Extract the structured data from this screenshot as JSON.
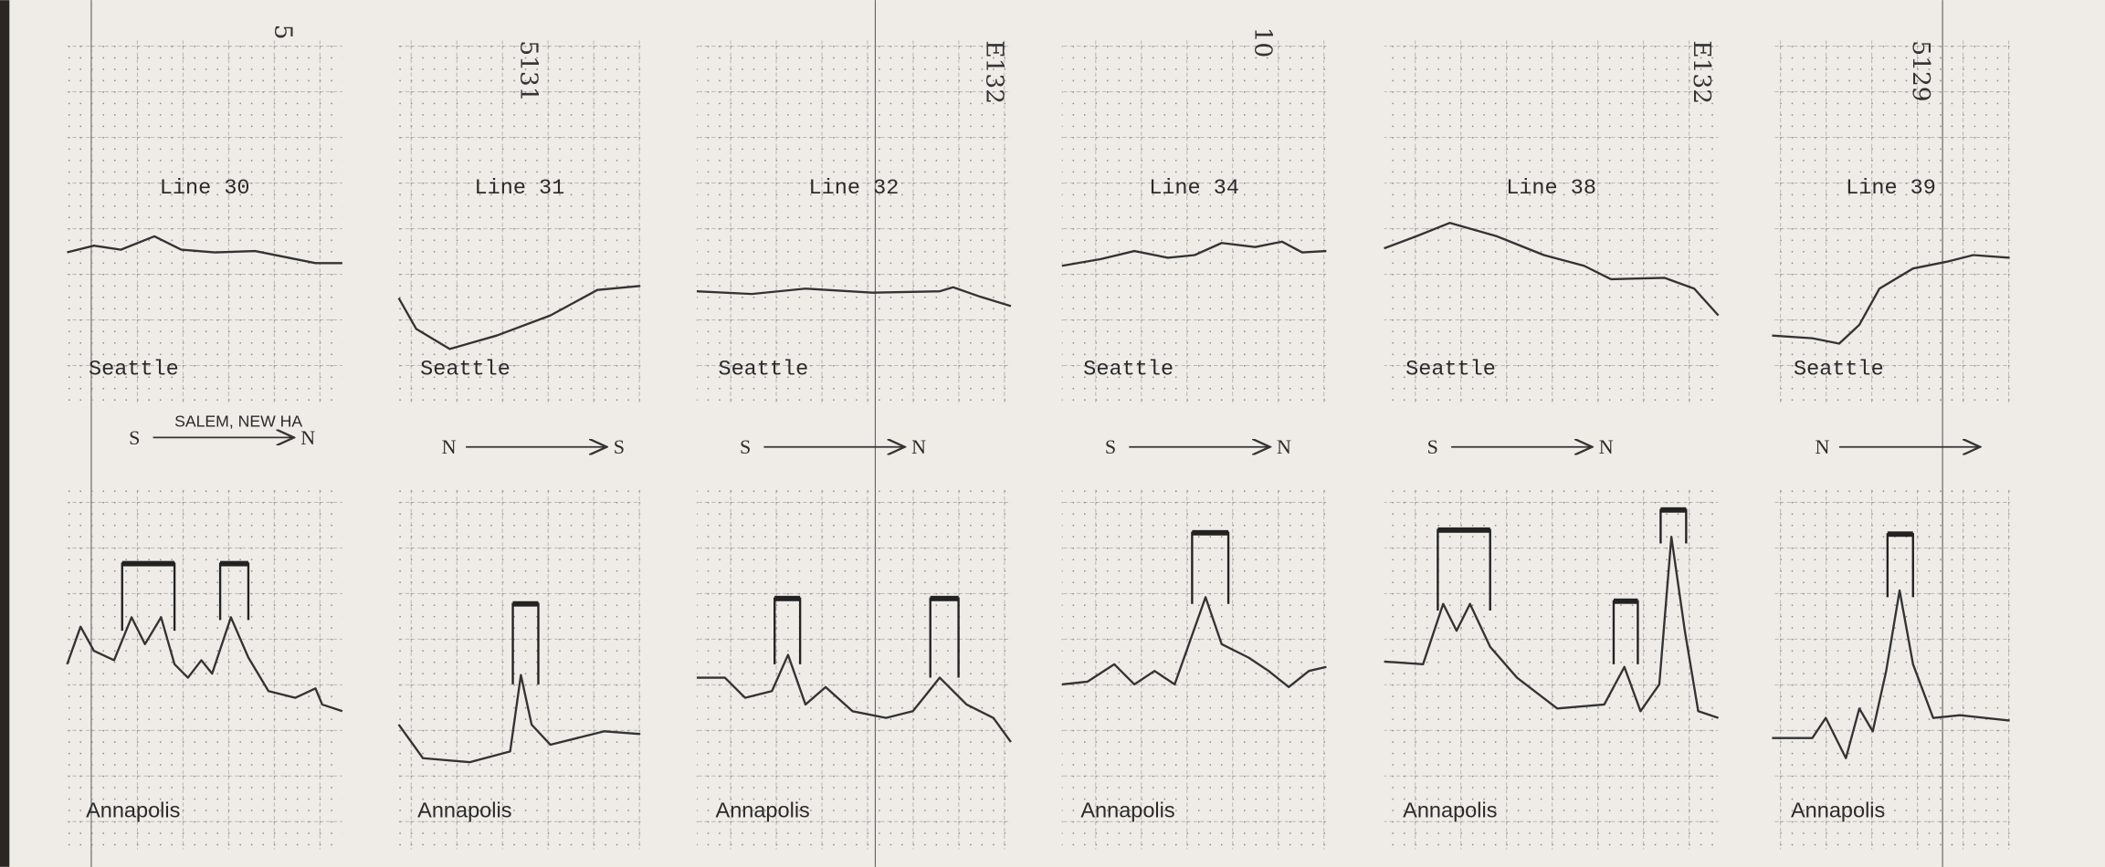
{
  "caption": "SALEM, NEW HA",
  "panels": [
    {
      "title": "Line 30",
      "top_label": "Seattle",
      "bottom_label": "Annapolis",
      "from": "S",
      "to": "N",
      "note": "5"
    },
    {
      "title": "Line 31",
      "top_label": "Seattle",
      "bottom_label": "Annapolis",
      "from": "N",
      "to": "S",
      "note": "5131"
    },
    {
      "title": "Line 32",
      "top_label": "Seattle",
      "bottom_label": "Annapolis",
      "from": "S",
      "to": "N",
      "note": "E132"
    },
    {
      "title": "Line 34",
      "top_label": "Seattle",
      "bottom_label": "Annapolis",
      "from": "S",
      "to": "N",
      "note": "10"
    },
    {
      "title": "Line 38",
      "top_label": "Seattle",
      "bottom_label": "Annapolis",
      "from": "S",
      "to": "N",
      "note": "E132"
    },
    {
      "title": "Line 39",
      "top_label": "Seattle",
      "bottom_label": "Annapolis",
      "from": "N",
      "note": "5129"
    }
  ]
}
